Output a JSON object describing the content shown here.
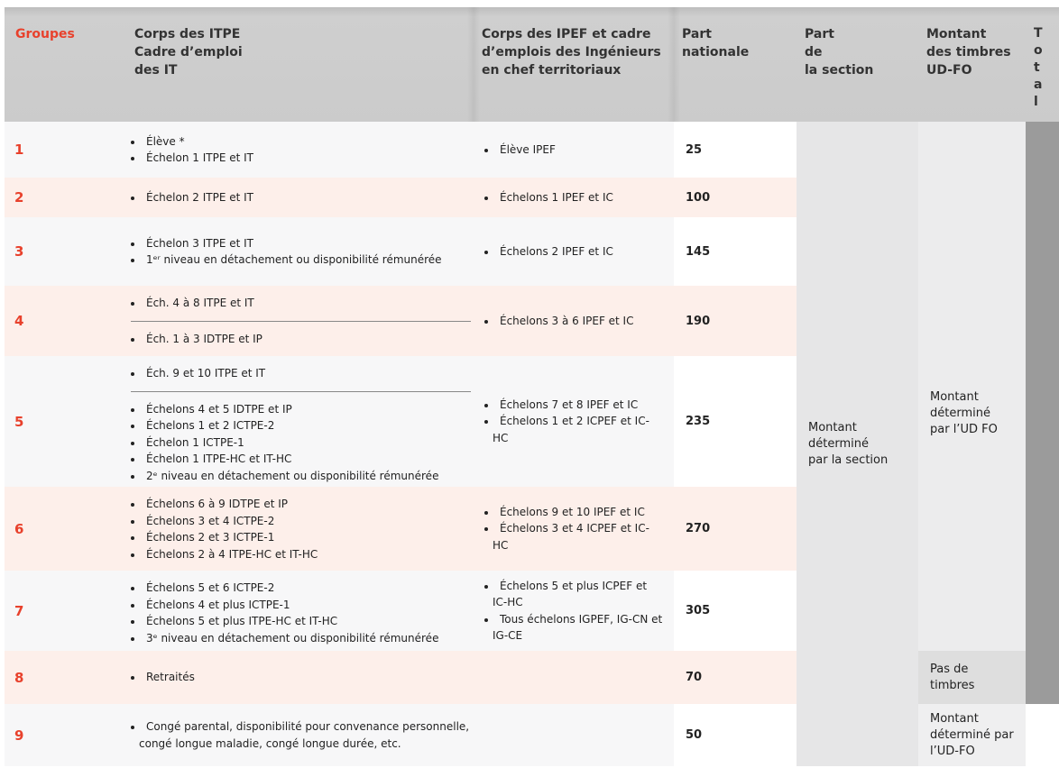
{
  "header": {
    "columns": [
      "Groupes",
      "Corps des ITPE\nCadre d’emploi\ndes IT",
      "Corps des IPEF et cadre\nd’emplois des Ingénieurs\nen chef territoriaux",
      "Part\nnationale",
      "Part\nde\nla section",
      "Montant\ndes timbres\nUD-FO",
      "Total"
    ]
  },
  "rows": [
    {
      "group": "1",
      "itpe": [
        [
          "Élève *",
          "Échelon 1 ITPE et IT"
        ]
      ],
      "ipef": [
        "Élève IPEF"
      ],
      "part_nationale": 25
    },
    {
      "group": "2",
      "itpe": [
        [
          "Échelon 2 ITPE et IT"
        ]
      ],
      "ipef": [
        "Échelons 1 IPEF et IC"
      ],
      "part_nationale": 100
    },
    {
      "group": "3",
      "itpe": [
        [
          "Échelon 3 ITPE et IT",
          "1ᵉʳ niveau en détachement ou disponibilité rémunérée"
        ]
      ],
      "ipef": [
        "Échelons 2 IPEF et IC"
      ],
      "part_nationale": 145
    },
    {
      "group": "4",
      "itpe": [
        [
          "Éch. 4 à 8 ITPE et IT"
        ],
        [
          "Éch. 1 à 3 IDTPE et IP"
        ]
      ],
      "ipef": [
        "Échelons 3 à 6 IPEF et IC"
      ],
      "part_nationale": 190
    },
    {
      "group": "5",
      "itpe": [
        [
          "Éch. 9 et 10 ITPE et IT"
        ],
        [
          "Échelons 4 et 5 IDTPE et IP",
          "Échelons 1 et 2 ICTPE-2",
          "Échelon 1 ICTPE-1",
          "Échelon 1 ITPE-HC et IT-HC",
          "2ᵉ niveau en détachement ou disponibilité rémunérée"
        ]
      ],
      "ipef": [
        "Échelons 7 et 8 IPEF et IC",
        "Échelons 1 et 2 ICPEF et IC-HC"
      ],
      "part_nationale": 235
    },
    {
      "group": "6",
      "itpe": [
        [
          "Échelons 6 à 9 IDTPE et IP",
          "Échelons 3 et 4 ICTPE-2",
          "Échelons 2 et 3 ICTPE-1",
          "Échelons 2 à 4 ITPE-HC et IT-HC"
        ]
      ],
      "ipef": [
        "Échelons 9 et 10 IPEF et IC",
        "Échelons 3 et 4 ICPEF et IC-HC"
      ],
      "part_nationale": 270
    },
    {
      "group": "7",
      "itpe": [
        [
          "Échelons 5 et 6 ICTPE-2",
          "Échelons 4 et plus ICTPE-1",
          "Échelons 5 et plus ITPE-HC et IT-HC",
          "3ᵉ niveau en détachement ou disponibilité rémunérée"
        ]
      ],
      "ipef": [
        "Échelons 5 et plus ICPEF et IC-HC",
        "Tous échelons IGPEF, IG-CN et IG-CE"
      ],
      "part_nationale": 305
    },
    {
      "group": "8",
      "itpe": [
        [
          "Retraités"
        ]
      ],
      "part_nationale": 70
    },
    {
      "group": "9",
      "itpe": [
        [
          "Congé parental, disponibilité pour convenance personnelle, congé longue maladie, congé longue durée, etc."
        ]
      ],
      "part_nationale": 50
    }
  ],
  "part_section": "Montant\ndéterminé\npar la section",
  "montant_timbres": [
    "Montant\ndéterminé\npar l’UD FO",
    "Pas de\ntimbres",
    "Montant\ndéterminé par\nl’UD-FO"
  ]
}
